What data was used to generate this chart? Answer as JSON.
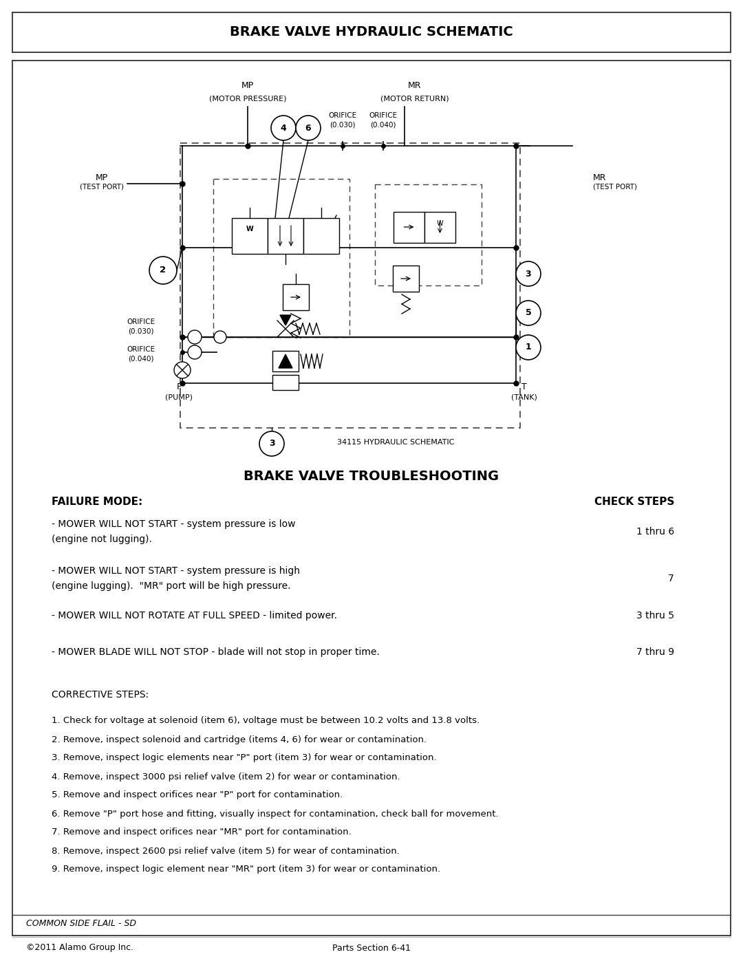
{
  "page_title": "BRAKE VALVE HYDRAULIC SCHEMATIC",
  "schematic_label": "34115 HYDRAULIC SCHEMATIC",
  "troubleshooting_title": "BRAKE VALVE TROUBLESHOOTING",
  "failure_mode_label": "FAILURE MODE:",
  "check_steps_label": "CHECK STEPS",
  "failures": [
    {
      "text1": "- MOWER WILL NOT START - system pressure is low",
      "text2": "  (engine not lugging).",
      "steps": "1 thru 6"
    },
    {
      "text1": "- MOWER WILL NOT START - system pressure is high",
      "text2": "  (engine lugging).  \"MR\" port will be high pressure.",
      "steps": "7"
    },
    {
      "text1": "- MOWER WILL NOT ROTATE AT FULL SPEED - limited power.",
      "text2": "",
      "steps": "3 thru 5"
    },
    {
      "text1": "- MOWER BLADE WILL NOT STOP - blade will not stop in proper time.",
      "text2": "",
      "steps": "7 thru 9"
    }
  ],
  "corrective_steps_label": "CORRECTIVE STEPS:",
  "corrective_steps": [
    "1. Check for voltage at solenoid (item 6), voltage must be between 10.2 volts and 13.8 volts.",
    "2. Remove, inspect solenoid and cartridge (items 4, 6) for wear or contamination.",
    "3. Remove, inspect logic elements near \"P\" port (item 3) for wear or contamination.",
    "4. Remove, inspect 3000 psi relief valve (item 2) for wear or contamination.",
    "5. Remove and inspect orifices near \"P\" port for contamination.",
    "6. Remove \"P\" port hose and fitting, visually inspect for contamination, check ball for movement.",
    "7. Remove and inspect orifices near \"MR\" port for contamination.",
    "8. Remove, inspect 2600 psi relief valve (item 5) for wear of contamination.",
    "9. Remove, inspect logic element near \"MR\" port (item 3) for wear or contamination."
  ],
  "footer_left": "COMMON SIDE FLAIL - SD",
  "footer_copyright": "©2011 Alamo Group Inc.",
  "footer_page": "Parts Section 6-41",
  "bg_color": "#ffffff",
  "border_color": "#404040",
  "text_color": "#000000"
}
